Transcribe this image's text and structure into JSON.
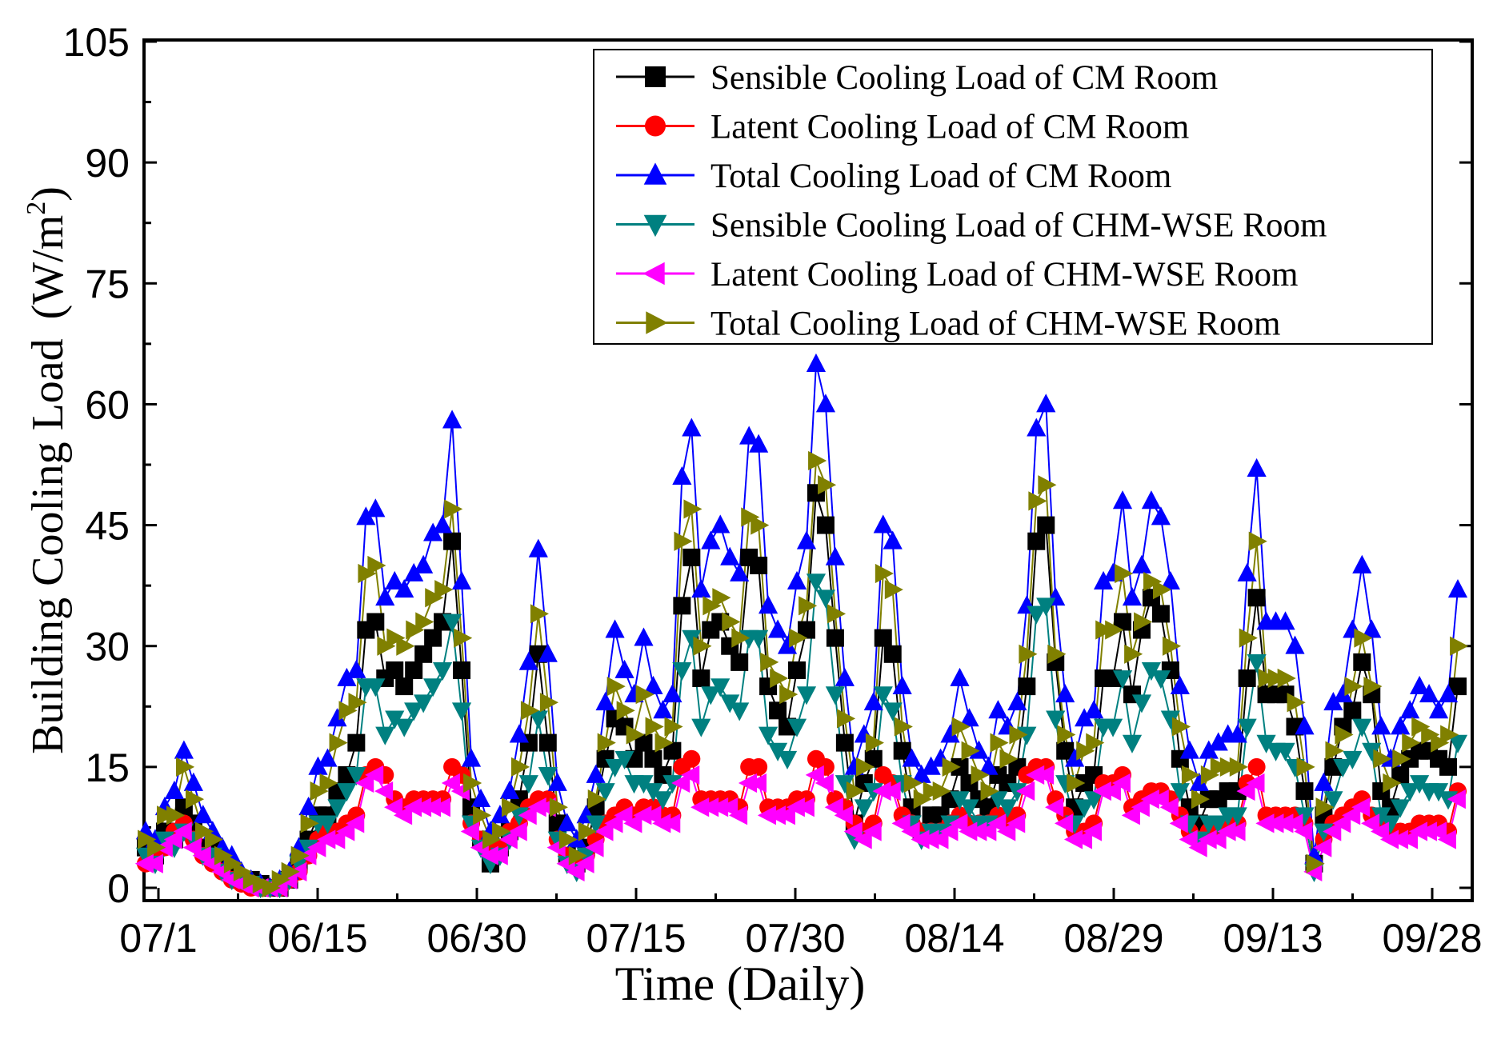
{
  "chart_data": {
    "type": "line",
    "title": "",
    "xlabel": "Time (Daily)",
    "ylabel_main": "Building Cooling Load",
    "ylabel_unit": "(W/m",
    "ylabel_sup": "2",
    "ylabel_close": ")",
    "ylim": [
      0,
      105
    ],
    "y_ticks": [
      0,
      15,
      30,
      45,
      60,
      75,
      90,
      105
    ],
    "x_tick_labels": [
      "07/1",
      "06/15",
      "06/30",
      "07/15",
      "07/30",
      "08/14",
      "08/29",
      "09/13",
      "09/28"
    ],
    "legend_position": "top-right",
    "series": [
      {
        "name": "Sensible Cooling Load of CM Room",
        "color": "#000000",
        "marker": "square",
        "values": [
          5,
          4,
          7,
          6,
          10,
          8,
          5,
          5,
          3,
          2,
          1,
          1,
          0.5,
          0,
          0,
          1,
          3,
          6,
          9,
          9,
          12,
          14,
          18,
          32,
          33,
          26,
          27,
          25,
          27,
          29,
          31,
          33,
          43,
          27,
          10,
          6,
          3,
          5,
          7,
          11,
          18,
          29,
          18,
          8,
          4,
          3,
          5,
          10,
          16,
          21,
          20,
          16,
          18,
          16,
          14,
          17,
          35,
          41,
          26,
          32,
          33,
          30,
          28,
          41,
          40,
          25,
          22,
          20,
          27,
          32,
          49,
          45,
          31,
          18,
          8,
          13,
          16,
          31,
          29,
          17,
          10,
          7,
          9,
          9,
          11,
          15,
          13,
          11,
          10,
          14,
          13,
          15,
          25,
          43,
          45,
          28,
          17,
          10,
          13,
          14,
          26,
          26,
          33,
          24,
          32,
          36,
          34,
          27,
          16,
          10,
          8,
          11,
          11,
          12,
          12,
          26,
          36,
          24,
          24,
          24,
          20,
          12,
          3,
          9,
          15,
          20,
          22,
          28,
          24,
          12,
          10,
          14,
          16,
          17,
          17,
          16,
          15,
          25
        ]
      },
      {
        "name": "Latent Cooling Load of CM Room",
        "color": "#ff0000",
        "marker": "circle",
        "values": [
          3,
          4,
          5,
          7,
          8,
          6,
          4,
          3,
          2,
          1,
          0.5,
          0,
          0,
          0,
          0,
          1,
          2,
          4,
          6,
          7,
          7,
          8,
          9,
          14,
          15,
          14,
          11,
          10,
          11,
          11,
          11,
          11,
          15,
          14,
          8,
          6,
          5,
          5,
          7,
          8,
          10,
          11,
          11,
          6,
          4,
          3,
          4,
          6,
          8,
          9,
          10,
          9,
          10,
          10,
          9,
          9,
          15,
          16,
          11,
          11,
          11,
          11,
          10,
          15,
          15,
          10,
          10,
          10,
          11,
          11,
          16,
          15,
          11,
          10,
          8,
          7,
          8,
          14,
          13,
          9,
          8,
          7,
          7,
          7,
          8,
          9,
          8,
          8,
          8,
          9,
          8,
          9,
          14,
          15,
          15,
          11,
          9,
          7,
          7,
          8,
          13,
          13,
          14,
          10,
          11,
          12,
          12,
          11,
          9,
          7,
          6,
          7,
          7,
          8,
          8,
          13,
          15,
          9,
          9,
          9,
          9,
          8,
          3,
          6,
          8,
          9,
          10,
          11,
          9,
          8,
          7,
          7,
          7,
          8,
          8,
          8,
          7,
          12
        ]
      },
      {
        "name": "Total Cooling Load of CM Room",
        "color": "#0000ff",
        "marker": "triangle-up",
        "values": [
          7,
          6,
          10,
          12,
          17,
          13,
          9,
          7,
          5,
          4,
          2,
          1,
          0.5,
          0,
          1,
          2,
          5,
          10,
          15,
          16,
          21,
          26,
          27,
          46,
          47,
          36,
          38,
          37,
          39,
          40,
          44,
          45,
          58,
          38,
          16,
          11,
          7,
          9,
          12,
          19,
          28,
          42,
          29,
          13,
          8,
          6,
          9,
          14,
          23,
          32,
          27,
          24,
          31,
          25,
          22,
          24,
          51,
          57,
          37,
          43,
          45,
          41,
          39,
          56,
          55,
          35,
          32,
          30,
          38,
          43,
          65,
          60,
          41,
          26,
          15,
          19,
          23,
          45,
          43,
          25,
          16,
          14,
          15,
          16,
          19,
          26,
          21,
          17,
          15,
          22,
          20,
          23,
          35,
          57,
          60,
          36,
          24,
          16,
          21,
          22,
          38,
          39,
          48,
          36,
          40,
          48,
          46,
          38,
          25,
          17,
          13,
          17,
          18,
          19,
          19,
          39,
          52,
          33,
          33,
          33,
          30,
          20,
          4,
          13,
          23,
          24,
          32,
          40,
          32,
          20,
          16,
          20,
          22,
          25,
          24,
          22,
          24,
          37
        ]
      },
      {
        "name": "Sensible Cooling Load of CHM-WSE Room",
        "color": "#008080",
        "marker": "triangle-down",
        "values": [
          4,
          3,
          6,
          5,
          7,
          6,
          4,
          4,
          2,
          1,
          1,
          0.5,
          0,
          0,
          0,
          1,
          3,
          5,
          8,
          8,
          10,
          12,
          14,
          25,
          25,
          19,
          21,
          20,
          22,
          23,
          25,
          27,
          33,
          22,
          8,
          5,
          3,
          4,
          6,
          9,
          13,
          21,
          14,
          6,
          3,
          2,
          4,
          8,
          12,
          15,
          16,
          13,
          13,
          12,
          11,
          13,
          27,
          31,
          20,
          24,
          25,
          23,
          22,
          31,
          31,
          19,
          17,
          16,
          20,
          24,
          38,
          36,
          24,
          13,
          6,
          10,
          12,
          24,
          22,
          13,
          8,
          6,
          7,
          7,
          8,
          11,
          10,
          8,
          8,
          11,
          10,
          12,
          19,
          34,
          35,
          21,
          13,
          8,
          10,
          11,
          20,
          20,
          26,
          18,
          23,
          27,
          26,
          21,
          12,
          8,
          6,
          8,
          8,
          9,
          9,
          20,
          28,
          18,
          17,
          17,
          15,
          9,
          2,
          7,
          11,
          15,
          16,
          20,
          17,
          9,
          8,
          10,
          12,
          13,
          12,
          12,
          11,
          18
        ]
      },
      {
        "name": "Latent Cooling Load of CHM-WSE Room",
        "color": "#ff00ff",
        "marker": "triangle-left",
        "values": [
          3,
          3,
          5,
          6,
          7,
          5,
          4,
          3,
          2,
          1,
          0.5,
          0,
          0,
          0,
          0,
          1,
          2,
          4,
          5,
          6,
          6,
          7,
          8,
          13,
          14,
          12,
          10,
          9,
          10,
          10,
          10,
          10,
          13,
          12,
          7,
          5,
          4,
          4,
          6,
          7,
          9,
          10,
          10,
          5,
          3,
          2,
          3,
          5,
          7,
          8,
          9,
          8,
          9,
          9,
          8,
          8,
          13,
          14,
          10,
          10,
          10,
          10,
          9,
          13,
          13,
          9,
          9,
          9,
          10,
          10,
          14,
          13,
          10,
          9,
          7,
          6,
          7,
          12,
          12,
          8,
          7,
          6,
          6,
          6,
          7,
          8,
          7,
          7,
          7,
          8,
          7,
          8,
          12,
          14,
          14,
          10,
          8,
          6,
          6,
          7,
          12,
          12,
          13,
          9,
          10,
          11,
          11,
          10,
          8,
          6,
          5,
          6,
          6,
          7,
          7,
          12,
          13,
          8,
          8,
          8,
          8,
          7,
          2,
          5,
          7,
          8,
          9,
          10,
          8,
          7,
          6,
          6,
          6,
          7,
          7,
          7,
          6,
          11
        ]
      },
      {
        "name": "Total Cooling Load of CHM-WSE Room",
        "color": "#808000",
        "marker": "triangle-right",
        "values": [
          6,
          5,
          9,
          9,
          15,
          11,
          7,
          6,
          4,
          3,
          2,
          1,
          0.5,
          0,
          1,
          2,
          4,
          8,
          12,
          13,
          18,
          22,
          23,
          39,
          40,
          30,
          31,
          30,
          32,
          33,
          36,
          37,
          47,
          31,
          13,
          9,
          6,
          7,
          10,
          15,
          22,
          34,
          23,
          10,
          6,
          4,
          7,
          11,
          18,
          25,
          22,
          19,
          24,
          20,
          18,
          20,
          43,
          47,
          30,
          35,
          36,
          33,
          31,
          46,
          45,
          28,
          26,
          24,
          31,
          35,
          53,
          50,
          34,
          21,
          12,
          15,
          18,
          39,
          37,
          20,
          13,
          11,
          12,
          12,
          15,
          20,
          17,
          14,
          12,
          18,
          16,
          19,
          29,
          48,
          50,
          29,
          19,
          13,
          17,
          18,
          32,
          32,
          39,
          29,
          33,
          38,
          37,
          30,
          20,
          14,
          11,
          14,
          15,
          15,
          15,
          31,
          43,
          26,
          26,
          26,
          23,
          15,
          3,
          10,
          17,
          19,
          25,
          31,
          25,
          16,
          13,
          16,
          18,
          20,
          19,
          18,
          19,
          30
        ]
      }
    ]
  }
}
